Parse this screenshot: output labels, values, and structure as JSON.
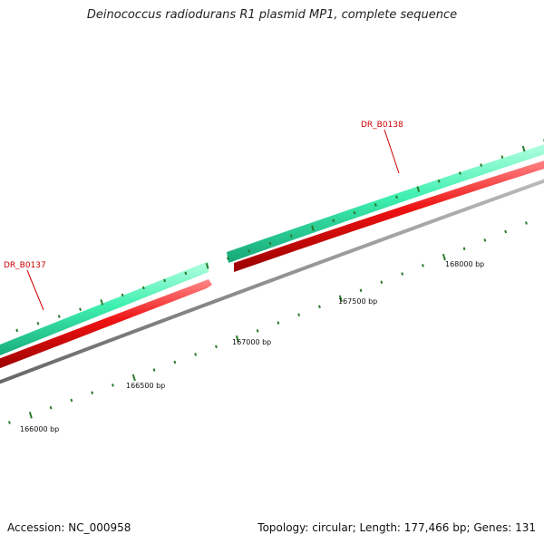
{
  "title": "Deinococcus radiodurans R1 plasmid MP1, complete sequence",
  "accession_text": "Accession: NC_000958",
  "summary_text": "Topology: circular; Length: 177,466 bp; Genes: 131",
  "genes": [
    {
      "id": "DR_B0137",
      "strand": "+",
      "color": "#cc0000"
    },
    {
      "id": "DR_B0138",
      "strand": "+",
      "color": "#cc0000"
    }
  ],
  "scale_labels": [
    "166000 bp",
    "166500 bp",
    "167000 bp",
    "167500 bp",
    "168000 bp"
  ],
  "colors": {
    "cds_track": "#3ff0b0",
    "gene_track": "#ee1111",
    "backbone": "#888888",
    "ticks": "#2a7a2a",
    "gene_label": "#cc0000",
    "text": "#111111"
  }
}
